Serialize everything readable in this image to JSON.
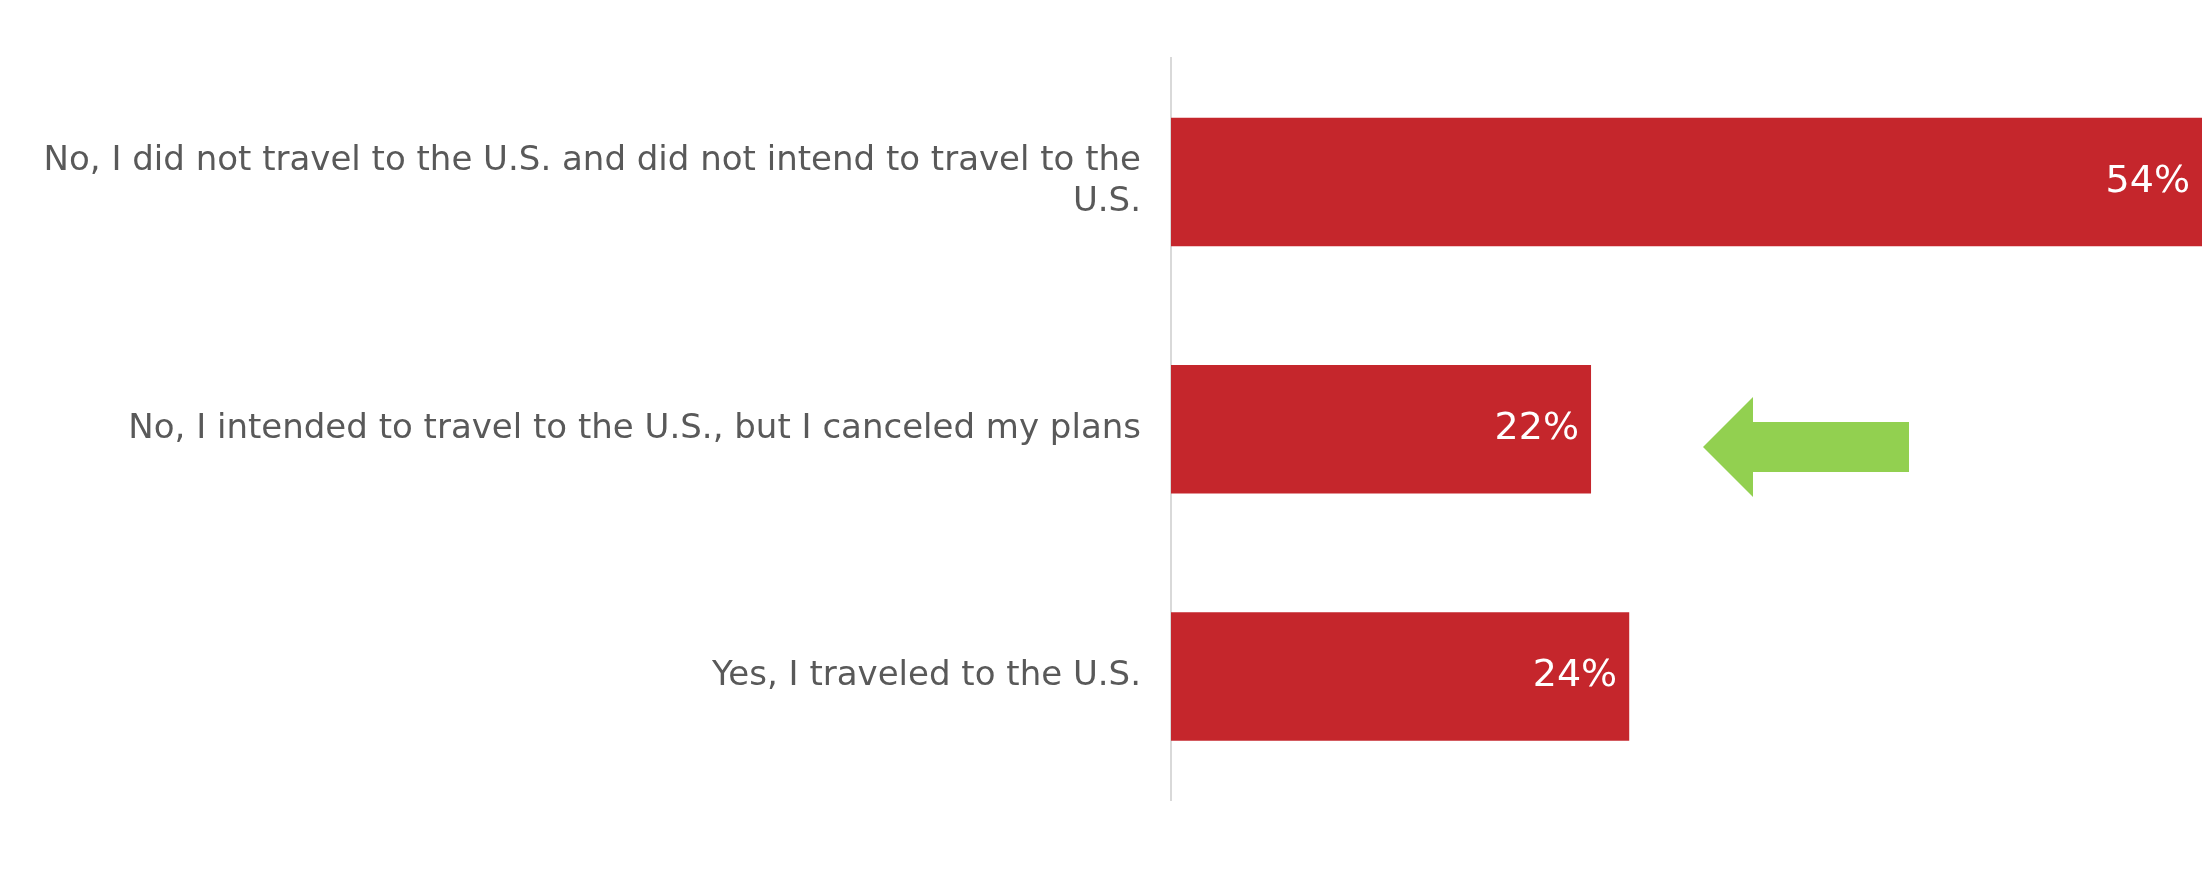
{
  "chart_data": {
    "type": "bar",
    "orientation": "horizontal",
    "categories": [
      "No, I did not travel to the U.S. and did not intend to travel to the U.S.",
      "No, I intended to travel to the U.S., but I canceled my plans",
      "Yes, I traveled to the U.S."
    ],
    "values": [
      54,
      22,
      24
    ],
    "value_labels": [
      "54%",
      "22%",
      "24%"
    ],
    "color": "#c5262c",
    "legend": false
  }
}
